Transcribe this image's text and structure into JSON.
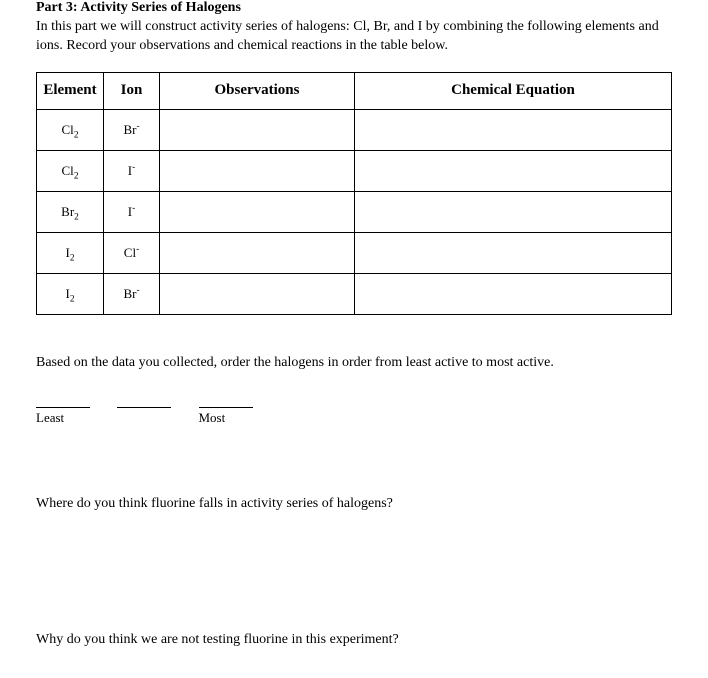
{
  "heading": "Part 3: Activity Series of Halogens",
  "intro": "In this part we will construct activity series of halogens: Cl, Br, and I by combining the following elements and ions. Record your observations and chemical reactions in the table below.",
  "table": {
    "headers": {
      "element": "Element",
      "ion": "Ion",
      "observations": "Observations",
      "equation": "Chemical Equation"
    },
    "rows": [
      {
        "element_base": "Cl",
        "element_sub": "2",
        "ion_base": "Br",
        "ion_sup": "-"
      },
      {
        "element_base": "Cl",
        "element_sub": "2",
        "ion_base": "I",
        "ion_sup": "-"
      },
      {
        "element_base": "Br",
        "element_sub": "2",
        "ion_base": "I",
        "ion_sup": "-"
      },
      {
        "element_base": "I",
        "element_sub": "2",
        "ion_base": "Cl",
        "ion_sup": "-"
      },
      {
        "element_base": "I",
        "element_sub": "2",
        "ion_base": "Br",
        "ion_sup": "-"
      }
    ]
  },
  "q1": "Based on the data you collected, order the halogens in order from least active to most active.",
  "blank_labels": {
    "least": "Least",
    "most": "Most"
  },
  "q2": "Where do you think fluorine falls in activity series of halogens?",
  "q3": "Why do you think we are not testing fluorine in this experiment?"
}
